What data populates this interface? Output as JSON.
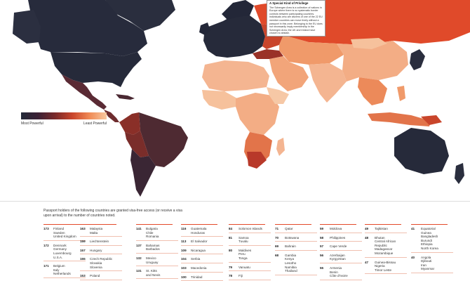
{
  "legend": {
    "left": "Most Powerful",
    "right": "Least Powerful"
  },
  "callout": {
    "title": "A Special Kind of Privilege",
    "body": "The Schengen Area is a collection of nations in Europe where there is no systematic border controls between participating countries. Individuals who are citizens of one of the 22 EU member countries can move freely without a passport in this zone. Belonging to the EU does not necessarily imply membership in the Schengen Area; the UK and Ireland have chosen to abstain."
  },
  "intro": "Passport holders of the following countries are granted visa-free access (or receive a visa upon arrival) to the number of countries noted.",
  "columns": [
    [
      {
        "n": "173",
        "c": "Finland\nSweden\nUnited Kingdom"
      },
      {
        "n": "172",
        "c": "Denmark\nGermany\nLuxembourg\nU.S.A."
      },
      {
        "n": "171",
        "c": "Belgium\nItaly\nNetherlands"
      }
    ],
    [
      {
        "n": "163",
        "c": "Malaysia\nMalta"
      },
      {
        "n": "159",
        "c": "Liechtenstein"
      },
      {
        "n": "157",
        "c": "Hungary"
      },
      {
        "n": "155",
        "c": "Czech Republic\nSlovakia\nSlovenia"
      },
      {
        "n": "153",
        "c": "Poland"
      }
    ],
    [
      {
        "n": "141",
        "c": "Bulgaria\nChile\nRomania"
      },
      {
        "n": "137",
        "c": "Bahamas\nBarbados"
      },
      {
        "n": "132",
        "c": "Mexico\nUruguay"
      },
      {
        "n": "131",
        "c": "St. Kitts\nand Nevis"
      }
    ],
    [
      {
        "n": "116",
        "c": "Guatemala\nHonduras"
      },
      {
        "n": "113",
        "c": "El Salvador"
      },
      {
        "n": "109",
        "c": "Nicaragua"
      },
      {
        "n": "104",
        "c": "Serbia"
      },
      {
        "n": "103",
        "c": "Macedonia"
      },
      {
        "n": "100",
        "c": "Trinidad"
      }
    ],
    [
      {
        "n": "84",
        "c": "Solomon Islands"
      },
      {
        "n": "81",
        "c": "Samoa\nTuvalu"
      },
      {
        "n": "80",
        "c": "Maldives\nPeru\nTonga"
      },
      {
        "n": "79",
        "c": "Vanuatu"
      },
      {
        "n": "78",
        "c": "Fiji"
      }
    ],
    [
      {
        "n": "71",
        "c": "Qatar"
      },
      {
        "n": "70",
        "c": "Botswana"
      },
      {
        "n": "69",
        "c": "Bahrain"
      },
      {
        "n": "68",
        "c": "Gambia\nKenya\nLesotho\nNamibia\nThailand"
      }
    ],
    [
      {
        "n": "59",
        "c": "Moldova"
      },
      {
        "n": "58",
        "c": "Philippines"
      },
      {
        "n": "57",
        "c": "Cape Verde"
      },
      {
        "n": "56",
        "c": "Azerbaijan\nKyrgyzstan"
      },
      {
        "n": "55",
        "c": "Armenia\nBenin\nCôte d'Ivoire"
      }
    ],
    [
      {
        "n": "49",
        "c": "Tajikistan"
      },
      {
        "n": "48",
        "c": "Bhutan\nCentral African\nRepublic\nMadagascar\nMozambique"
      },
      {
        "n": "47",
        "c": "Guinea-Bissau\nNigeria\nTimor Leste"
      }
    ],
    [
      {
        "n": "41",
        "c": "Equatorial\nGuinea\nBangladesh\nBurundi\nEthiopia\nNorth Korea"
      },
      {
        "n": "40",
        "c": "Angola\nDjibouti\nIran\nMyanmar"
      }
    ]
  ]
}
